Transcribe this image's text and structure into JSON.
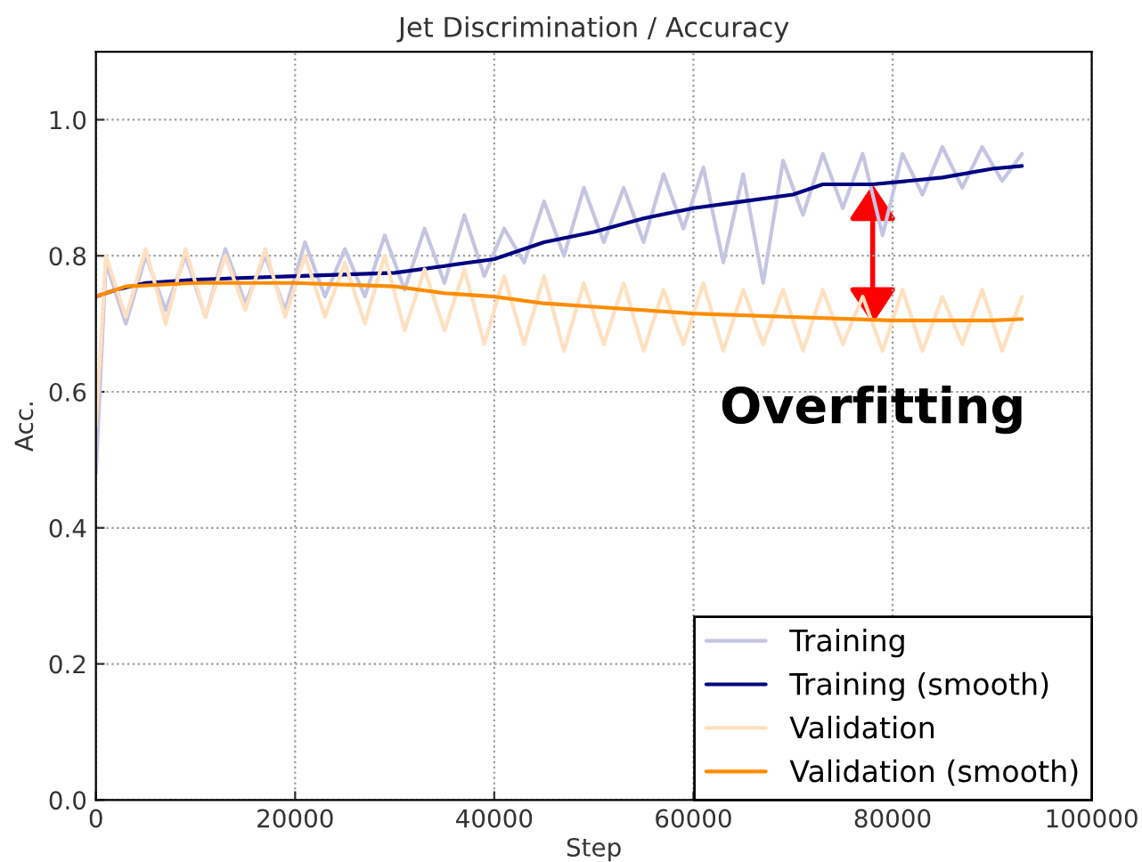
{
  "chart_data": {
    "type": "line",
    "title": "Jet Discrimination / Accuracy",
    "xlabel": "Step",
    "ylabel": "Acc.",
    "xlim": [
      0,
      100000
    ],
    "xticks": [
      0,
      20000,
      40000,
      60000,
      80000,
      100000
    ],
    "ylim": [
      0,
      1.1
    ],
    "yticks": [
      {
        "value": 0,
        "label": "0.0"
      },
      {
        "value": 0.2,
        "label": "0.2"
      },
      {
        "value": 0.4,
        "label": "0.4"
      },
      {
        "value": 0.6,
        "label": "0.6"
      },
      {
        "value": 0.8,
        "label": "0.8"
      },
      {
        "value": 1.0,
        "label": "1.0"
      }
    ],
    "grid": true,
    "legend": "bottom right",
    "line_style": "solid",
    "marker": "none",
    "annotations": [
      {
        "text": "Overfitting",
        "x": 78000,
        "y": 0.7
      }
    ],
    "series": [
      {
        "name": "Training",
        "color": "#c5c5e3",
        "x": [
          0,
          1000,
          3000,
          5000,
          7000,
          9000,
          11000,
          13000,
          15000,
          17000,
          19000,
          21000,
          23000,
          25000,
          27000,
          29000,
          31000,
          33000,
          35000,
          37000,
          39000,
          41000,
          43000,
          45000,
          47000,
          49000,
          51000,
          53000,
          55000,
          57000,
          59000,
          61000,
          63000,
          65000,
          67000,
          69000,
          71000,
          73000,
          75000,
          77000,
          79000,
          81000,
          83000,
          85000,
          87000,
          89000,
          91000,
          93000
        ],
        "values": [
          0.48,
          0.79,
          0.7,
          0.8,
          0.72,
          0.8,
          0.71,
          0.81,
          0.73,
          0.8,
          0.72,
          0.82,
          0.74,
          0.81,
          0.74,
          0.83,
          0.75,
          0.84,
          0.76,
          0.86,
          0.77,
          0.84,
          0.79,
          0.88,
          0.8,
          0.9,
          0.82,
          0.9,
          0.82,
          0.92,
          0.84,
          0.93,
          0.79,
          0.92,
          0.76,
          0.94,
          0.86,
          0.95,
          0.87,
          0.95,
          0.83,
          0.95,
          0.89,
          0.96,
          0.9,
          0.96,
          0.91,
          0.95
        ]
      },
      {
        "name": "Training (smooth)",
        "color": "#000080",
        "x": [
          0,
          2000,
          5000,
          10000,
          20000,
          30000,
          35000,
          40000,
          45000,
          50000,
          55000,
          60000,
          65000,
          70000,
          73000,
          78000,
          85000,
          90000,
          93000
        ],
        "values": [
          0.74,
          0.75,
          0.76,
          0.765,
          0.77,
          0.775,
          0.785,
          0.795,
          0.82,
          0.835,
          0.855,
          0.87,
          0.88,
          0.89,
          0.905,
          0.905,
          0.915,
          0.928,
          0.932
        ]
      },
      {
        "name": "Validation",
        "color": "#ffe0c0",
        "x": [
          0,
          1000,
          3000,
          5000,
          7000,
          9000,
          11000,
          13000,
          15000,
          17000,
          19000,
          21000,
          23000,
          25000,
          27000,
          29000,
          31000,
          33000,
          35000,
          37000,
          39000,
          41000,
          43000,
          45000,
          47000,
          49000,
          51000,
          53000,
          55000,
          57000,
          59000,
          61000,
          63000,
          65000,
          67000,
          69000,
          71000,
          73000,
          75000,
          77000,
          79000,
          81000,
          83000,
          85000,
          87000,
          89000,
          91000,
          93000
        ],
        "values": [
          0.55,
          0.8,
          0.71,
          0.81,
          0.7,
          0.81,
          0.71,
          0.8,
          0.72,
          0.81,
          0.71,
          0.8,
          0.71,
          0.79,
          0.7,
          0.8,
          0.69,
          0.78,
          0.69,
          0.78,
          0.67,
          0.77,
          0.67,
          0.77,
          0.66,
          0.76,
          0.67,
          0.76,
          0.66,
          0.75,
          0.67,
          0.76,
          0.66,
          0.75,
          0.67,
          0.75,
          0.66,
          0.75,
          0.67,
          0.74,
          0.66,
          0.75,
          0.66,
          0.74,
          0.67,
          0.75,
          0.66,
          0.74
        ]
      },
      {
        "name": "Validation (smooth)",
        "color": "#ff8c00",
        "x": [
          0,
          3000,
          10000,
          20000,
          30000,
          35000,
          40000,
          45000,
          50000,
          60000,
          70000,
          80000,
          85000,
          90000,
          93000
        ],
        "values": [
          0.74,
          0.755,
          0.76,
          0.76,
          0.755,
          0.745,
          0.74,
          0.73,
          0.725,
          0.715,
          0.71,
          0.705,
          0.705,
          0.705,
          0.707
        ]
      }
    ]
  }
}
